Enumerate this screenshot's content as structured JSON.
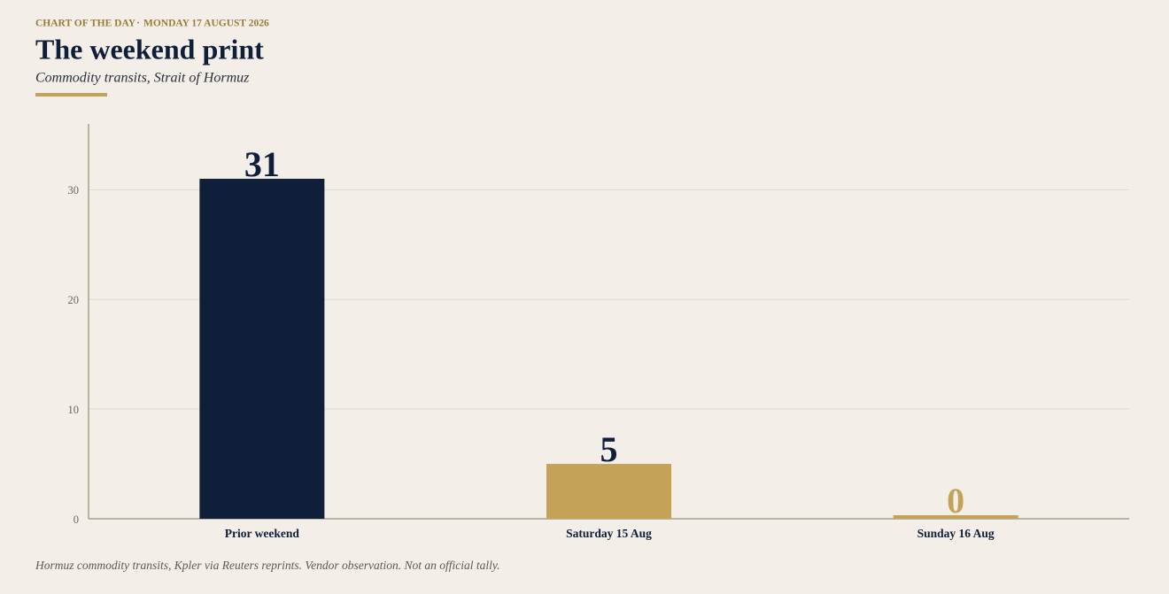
{
  "kicker": "CHART OF THE DAY",
  "date": "MONDAY 17 AUGUST 2026",
  "chart_data": {
    "type": "bar",
    "title": "The weekend print",
    "subtitle": "Commodity transits, Strait of Hormuz",
    "categories": [
      "Prior weekend",
      "Saturday 15 Aug",
      "Sunday 16 Aug"
    ],
    "values": [
      31,
      5,
      0
    ],
    "colors": [
      "#0f1f3a",
      "#c4a257",
      "#c4a257"
    ],
    "ylim": [
      0,
      36
    ],
    "yticks": [
      0,
      10,
      20,
      30
    ],
    "grid": true,
    "note": "Hormuz commodity transits, Kpler via Reuters reprints. Vendor observation. Not an official tally."
  }
}
